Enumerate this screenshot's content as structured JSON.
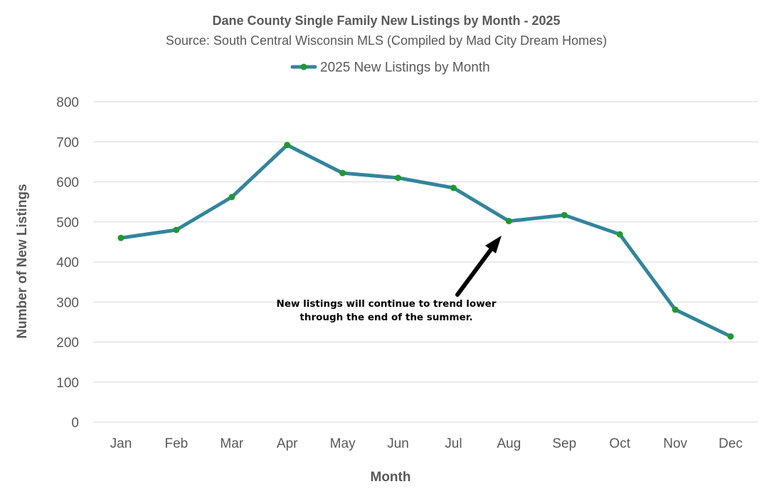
{
  "chart_data": {
    "type": "line",
    "title": "Dane County Single Family New Listings by Month - 2025",
    "subtitle": "Source: South Central Wisconsin MLS (Compiled by Mad City Dream Homes)",
    "xlabel": "Month",
    "ylabel": "Number of New Listings",
    "categories": [
      "Jan",
      "Feb",
      "Mar",
      "Apr",
      "May",
      "Jun",
      "Jul",
      "Aug",
      "Sep",
      "Oct",
      "Nov",
      "Dec"
    ],
    "series": [
      {
        "name": "2025 New Listings by Month",
        "values": [
          460,
          480,
          562,
          692,
          622,
          610,
          585,
          502,
          517,
          469,
          281,
          214
        ],
        "line_color": "#31859c",
        "marker_color": "#1f9a2a"
      }
    ],
    "ylim": [
      0,
      800
    ],
    "yticks": [
      0,
      100,
      200,
      300,
      400,
      500,
      600,
      700,
      800
    ],
    "grid": true,
    "legend_position": "top-center",
    "annotation": {
      "lines": [
        "New listings will continue to trend lower",
        "through the end of the summer."
      ],
      "arrow_target_category": "Aug",
      "color": "#000000"
    }
  }
}
